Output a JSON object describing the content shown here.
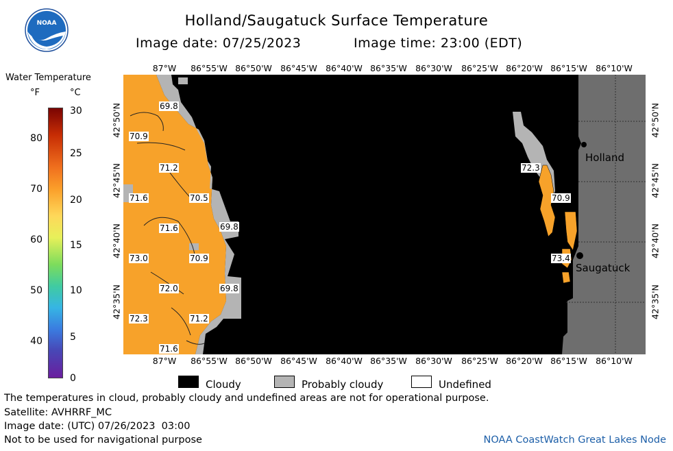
{
  "header": {
    "title": "Holland/Saugatuck Surface Temperature",
    "image_date_label": "Image date: 07/25/2023",
    "image_time_label": "Image time: 23:00 (EDT)",
    "logo_text": "NOAA"
  },
  "colorbar": {
    "title": "Water Temperature",
    "unit_f": "°F",
    "unit_c": "°C",
    "f_ticks": [
      "80",
      "70",
      "60",
      "50",
      "40"
    ],
    "c_ticks": [
      "30",
      "25",
      "20",
      "15",
      "10",
      "5",
      "0"
    ]
  },
  "map": {
    "lon_labels": [
      "87°W",
      "86°55'W",
      "86°50'W",
      "86°45'W",
      "86°40'W",
      "86°35'W",
      "86°30'W",
      "86°25'W",
      "86°20'W",
      "86°15'W",
      "86°10'W"
    ],
    "lat_labels": [
      "42°50'N",
      "42°45'N",
      "42°40'N",
      "42°35'N"
    ],
    "places": [
      {
        "name": "Holland"
      },
      {
        "name": "Saugatuck"
      }
    ],
    "temp_labels": [
      "69.8",
      "70.9",
      "71.2",
      "71.6",
      "70.5",
      "69.8",
      "71.6",
      "73.0",
      "70.9",
      "72.0",
      "69.8",
      "72.3",
      "71.2",
      "71.6",
      "72.3",
      "70.9",
      "73.4"
    ],
    "colors": {
      "water_warm": "#f7a22a",
      "cloudy": "#000000",
      "probably_cloudy": "#b4b4b4",
      "land": "#6e6e6e"
    }
  },
  "legend": {
    "cloudy": "Cloudy",
    "probably_cloudy": "Probably cloudy",
    "undefined": "Undefined"
  },
  "footer": {
    "disclaimer": "The temperatures in cloud, probably cloudy and undefined areas are not for operational purpose.",
    "satellite": "Satellite: AVHRRF_MC",
    "utc_date": "Image date: (UTC) 07/26/2023  03:00",
    "nav_warning": "Not to be used for navigational purpose",
    "credit": "NOAA CoastWatch Great Lakes Node"
  }
}
